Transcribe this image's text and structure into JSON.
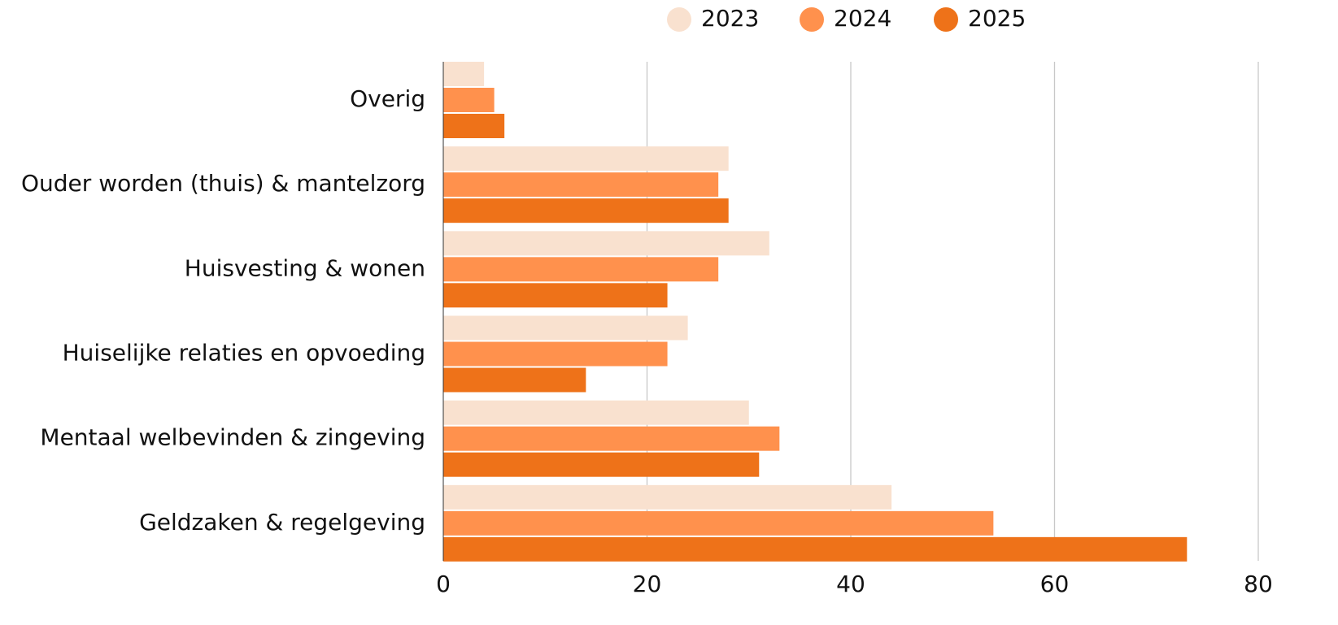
{
  "chart_data": {
    "type": "bar",
    "orientation": "horizontal",
    "title": "",
    "xlabel": "",
    "ylabel": "",
    "categories": [
      "Overig",
      "Ouder worden (thuis) & mantelzorg",
      "Huisvesting & wonen",
      "Huiselijke relaties en opvoeding",
      "Mentaal welbevinden & zingeving",
      "Geldzaken & regelgeving"
    ],
    "series": [
      {
        "name": "2023",
        "color": "#F9E1CF",
        "values": [
          4,
          28,
          32,
          24,
          30,
          44
        ]
      },
      {
        "name": "2024",
        "color": "#FF914D",
        "values": [
          5,
          27,
          27,
          22,
          33,
          54
        ]
      },
      {
        "name": "2025",
        "color": "#EE7219",
        "values": [
          6,
          28,
          22,
          14,
          31,
          73
        ]
      }
    ],
    "xlim": [
      0,
      80
    ],
    "xticks": [
      0,
      20,
      40,
      60,
      80
    ],
    "xtick_labels": [
      "0",
      "20",
      "40",
      "60",
      "80"
    ],
    "grid": "vertical",
    "legend_position": "top-center"
  }
}
